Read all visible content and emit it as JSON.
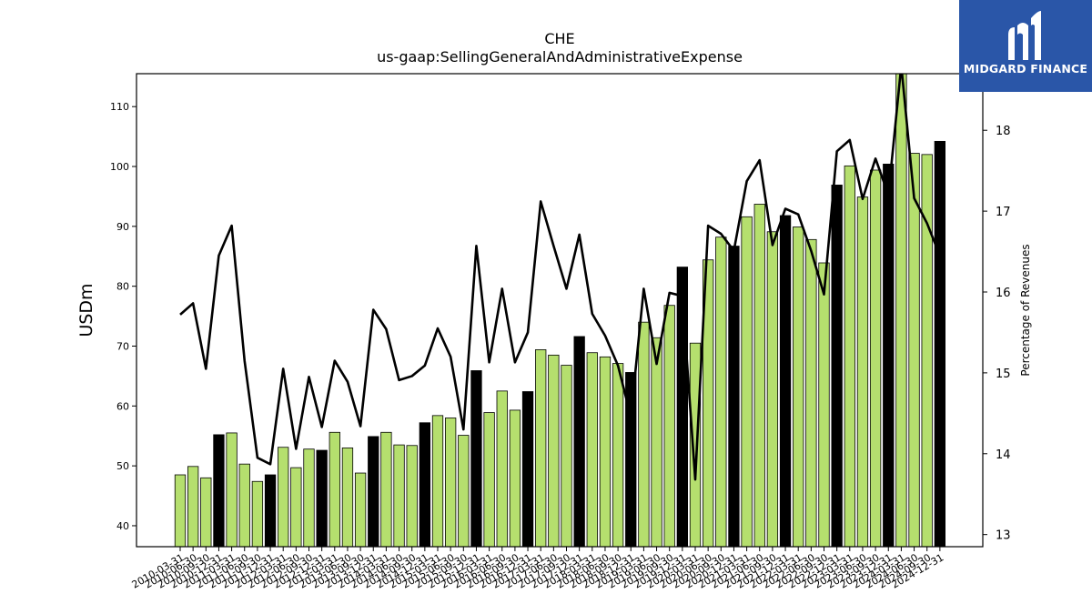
{
  "chart_data": {
    "type": "bar",
    "title": "CHE",
    "subtitle": "us-gaap:SellingGeneralAndAdministrativeExpense",
    "ylabel": "USDm",
    "y2label": "Percentage of Revenues",
    "ylim": [
      36.5,
      115.5
    ],
    "y2lim": [
      12.85,
      18.7
    ],
    "yticks": [
      40,
      50,
      60,
      70,
      80,
      90,
      100,
      110
    ],
    "y2ticks": [
      13,
      14,
      15,
      16,
      17,
      18
    ],
    "colors": {
      "quarter": "#b5df6e",
      "annual": "#000000",
      "line": "#000000"
    },
    "categories": [
      "2010-03-31",
      "2010-06-30",
      "2010-09-30",
      "2010-12-31",
      "2011-03-31",
      "2011-06-30",
      "2011-09-30",
      "2011-12-31",
      "2012-03-31",
      "2012-06-30",
      "2012-09-30",
      "2012-12-31",
      "2013-03-31",
      "2013-06-30",
      "2013-09-30",
      "2013-12-31",
      "2014-03-31",
      "2014-06-30",
      "2014-09-30",
      "2014-12-31",
      "2015-03-31",
      "2015-06-30",
      "2015-09-30",
      "2015-12-31",
      "2016-03-31",
      "2016-06-30",
      "2016-09-30",
      "2016-12-31",
      "2017-03-31",
      "2017-06-30",
      "2017-09-30",
      "2017-12-31",
      "2018-03-31",
      "2018-06-30",
      "2018-09-30",
      "2018-12-31",
      "2019-03-31",
      "2019-06-30",
      "2019-09-30",
      "2019-12-31",
      "2020-03-31",
      "2020-06-30",
      "2020-09-30",
      "2020-12-31",
      "2021-03-31",
      "2021-06-30",
      "2021-09-30",
      "2021-12-31",
      "2022-03-31",
      "2022-06-30",
      "2022-09-30",
      "2022-12-31",
      "2023-03-31",
      "2023-06-30",
      "2023-09-30",
      "2023-12-31",
      "2024-03-31",
      "2024-06-30",
      "2024-09-30",
      "2024-12-31"
    ],
    "series": [
      {
        "values": [
          48.5,
          49.9,
          48.0,
          55.2,
          55.5,
          50.3,
          47.4,
          48.5,
          53.1,
          49.7,
          52.8,
          52.6,
          55.6,
          53.0,
          48.8,
          54.9,
          55.6,
          53.5,
          53.4,
          57.2,
          58.4,
          58.0,
          55.1,
          65.9,
          58.9,
          62.5,
          59.3,
          62.4,
          69.4,
          68.5,
          66.8,
          71.6,
          68.9,
          68.2,
          67.1,
          65.6,
          74.0,
          71.4,
          76.8,
          83.2,
          70.5,
          84.4,
          88.2,
          86.7,
          91.6,
          93.7,
          89.1,
          91.8,
          89.9,
          87.8,
          83.9,
          96.9,
          100.1,
          94.9,
          99.4,
          100.4,
          117.0,
          102.2,
          102.0,
          104.2
        ],
        "annual": [
          false,
          false,
          false,
          true,
          false,
          false,
          false,
          true,
          false,
          false,
          false,
          true,
          false,
          false,
          false,
          true,
          false,
          false,
          false,
          true,
          false,
          false,
          false,
          true,
          false,
          false,
          false,
          true,
          false,
          false,
          false,
          true,
          false,
          false,
          false,
          true,
          false,
          false,
          false,
          true,
          false,
          false,
          false,
          true,
          false,
          false,
          false,
          true,
          false,
          false,
          false,
          true,
          false,
          false,
          false,
          true,
          false,
          false,
          false,
          true
        ]
      },
      {
        "axis": "right",
        "values": [
          15.72,
          15.86,
          15.05,
          16.45,
          16.82,
          15.15,
          13.95,
          13.87,
          15.05,
          14.06,
          14.95,
          14.33,
          15.15,
          14.89,
          14.34,
          15.78,
          15.54,
          14.91,
          14.96,
          15.09,
          15.55,
          15.2,
          14.3,
          16.57,
          15.13,
          16.04,
          15.13,
          15.5,
          17.12,
          16.57,
          16.04,
          16.71,
          15.73,
          15.46,
          15.09,
          14.46,
          16.04,
          15.11,
          15.99,
          15.95,
          13.68,
          16.82,
          16.72,
          16.51,
          17.37,
          17.63,
          16.58,
          17.03,
          16.96,
          16.51,
          15.97,
          17.74,
          17.88,
          17.15,
          17.65,
          17.2,
          18.8,
          17.16,
          16.85,
          16.45
        ]
      }
    ]
  },
  "logo": {
    "name": "midgard-finance-logo",
    "text": "MIDGARD FINANCE"
  }
}
